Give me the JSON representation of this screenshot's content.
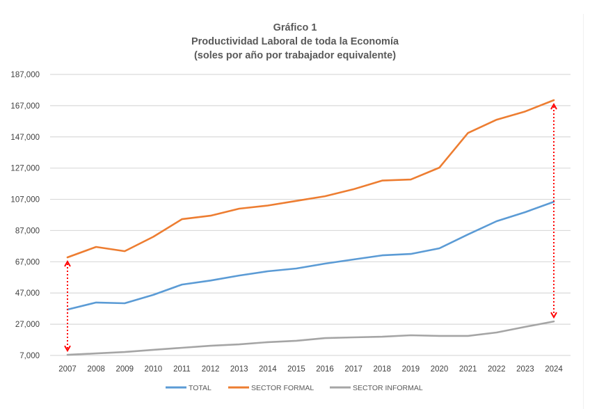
{
  "chart_data": {
    "type": "line",
    "title": "Gráfico 1",
    "subtitle_line1": "Productividad Laboral de toda la Economía",
    "subtitle_line2": "(soles por año por trabajador equivalente)",
    "xlabel": "",
    "ylabel": "",
    "ylim": [
      7000,
      187000
    ],
    "yticks": [
      7000,
      27000,
      47000,
      67000,
      87000,
      107000,
      127000,
      147000,
      167000,
      187000
    ],
    "ytick_labels": [
      "7,000",
      "27,000",
      "47,000",
      "67,000",
      "87,000",
      "107,000",
      "127,000",
      "147,000",
      "167,000",
      "187,000"
    ],
    "grid": true,
    "legend_position": "bottom",
    "categories": [
      "2007",
      "2008",
      "2009",
      "2010",
      "2011",
      "2012",
      "2013",
      "2014",
      "2015",
      "2016",
      "2017",
      "2018",
      "2019",
      "2020",
      "2021",
      "2022",
      "2023",
      "2024"
    ],
    "series": [
      {
        "name": "TOTAL",
        "color": "#5b9bd5",
        "values": [
          36400,
          40900,
          40400,
          45800,
          52400,
          55000,
          58200,
          60900,
          62700,
          65800,
          68500,
          71100,
          72000,
          75600,
          84500,
          93000,
          98800,
          105400
        ]
      },
      {
        "name": "SECTOR FORMAL",
        "color": "#ed7d31",
        "values": [
          69800,
          76500,
          73800,
          83000,
          94300,
          96500,
          101000,
          103000,
          106000,
          109000,
          113500,
          119000,
          119700,
          127300,
          149500,
          158000,
          163300,
          170500
        ]
      },
      {
        "name": "SECTOR INFORMAL",
        "color": "#a5a5a5",
        "values": [
          7400,
          8300,
          9200,
          10600,
          11900,
          13200,
          14100,
          15500,
          16400,
          18100,
          18600,
          19000,
          19900,
          19500,
          19500,
          21700,
          25300,
          28800
        ]
      }
    ],
    "annotations": [
      {
        "type": "double-arrow",
        "color": "#ff0000",
        "style": "dotted",
        "x": "2007",
        "from_series": "SECTOR INFORMAL",
        "to_series": "SECTOR FORMAL",
        "meaning": "gap between formal and informal sectors"
      },
      {
        "type": "double-arrow",
        "color": "#ff0000",
        "style": "dotted",
        "x": "2024",
        "from_series": "SECTOR INFORMAL",
        "to_series": "SECTOR FORMAL",
        "meaning": "gap between formal and informal sectors"
      }
    ]
  }
}
